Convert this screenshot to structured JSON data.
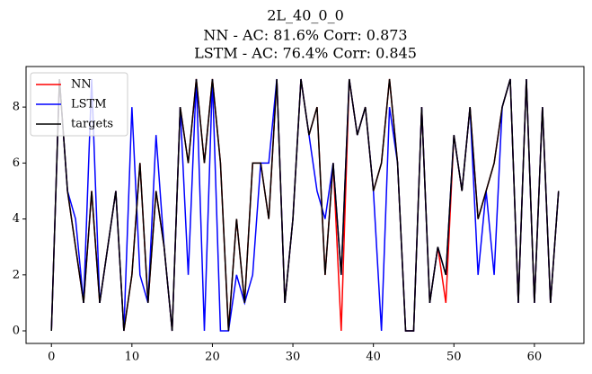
{
  "chart_data": {
    "type": "line",
    "title": [
      "2L_40_0_0",
      "NN - AC: 81.6% Corr: 0.873",
      "LSTM - AC: 76.4% Corr: 0.845"
    ],
    "x": [
      0,
      1,
      2,
      3,
      4,
      5,
      6,
      7,
      8,
      9,
      10,
      11,
      12,
      13,
      14,
      15,
      16,
      17,
      18,
      19,
      20,
      21,
      22,
      23,
      24,
      25,
      26,
      27,
      28,
      29,
      30,
      31,
      32,
      33,
      34,
      35,
      36,
      37,
      38,
      39,
      40,
      41,
      42,
      43,
      44,
      45,
      46,
      47,
      48,
      49,
      50,
      51,
      52,
      53,
      54,
      55,
      56,
      57,
      58,
      59,
      60,
      61,
      62,
      63
    ],
    "series": [
      {
        "name": "NN",
        "color": "#ff0000",
        "values": [
          0,
          9,
          5,
          3,
          1,
          5,
          1,
          3,
          5,
          0,
          2,
          6,
          1,
          5,
          3,
          0,
          8,
          6,
          9,
          6,
          9,
          6,
          0,
          4,
          1,
          6,
          6,
          4,
          9,
          1,
          4,
          9,
          7,
          8,
          2,
          6,
          0,
          9,
          7,
          8,
          5,
          6,
          9,
          6,
          0,
          0,
          8,
          1,
          3,
          1,
          7,
          5,
          8,
          4,
          5,
          6,
          8,
          9,
          1,
          9,
          1,
          8,
          1,
          5
        ]
      },
      {
        "name": "LSTM",
        "color": "#0000ff",
        "values": [
          0,
          9,
          5,
          4,
          1,
          9,
          1,
          3,
          5,
          0,
          8,
          2,
          1,
          7,
          3,
          0,
          8,
          2,
          9,
          0,
          9,
          0,
          0,
          2,
          1,
          2,
          6,
          6,
          9,
          1,
          4,
          9,
          7,
          5,
          4,
          6,
          2,
          9,
          7,
          8,
          5,
          0,
          8,
          6,
          0,
          0,
          8,
          1,
          3,
          2,
          7,
          5,
          8,
          2,
          5,
          2,
          8,
          9,
          1,
          9,
          1,
          8,
          1,
          5
        ]
      },
      {
        "name": "targets",
        "color": "#000000",
        "values": [
          0,
          9,
          5,
          3,
          1,
          5,
          1,
          3,
          5,
          0,
          2,
          6,
          1,
          5,
          3,
          0,
          8,
          6,
          9,
          6,
          9,
          6,
          0,
          4,
          1,
          6,
          6,
          4,
          9,
          1,
          4,
          9,
          7,
          8,
          2,
          6,
          2,
          9,
          7,
          8,
          5,
          6,
          9,
          6,
          0,
          0,
          8,
          1,
          3,
          2,
          7,
          5,
          8,
          4,
          5,
          6,
          8,
          9,
          1,
          9,
          1,
          8,
          1,
          5
        ]
      }
    ],
    "xlim": [
      -3.15,
      66.15
    ],
    "xticks": [
      0,
      10,
      20,
      30,
      40,
      50,
      60
    ],
    "ylim": [
      -0.45,
      9.45
    ],
    "yticks": [
      0,
      2,
      4,
      6,
      8
    ],
    "legend": "upper left"
  }
}
